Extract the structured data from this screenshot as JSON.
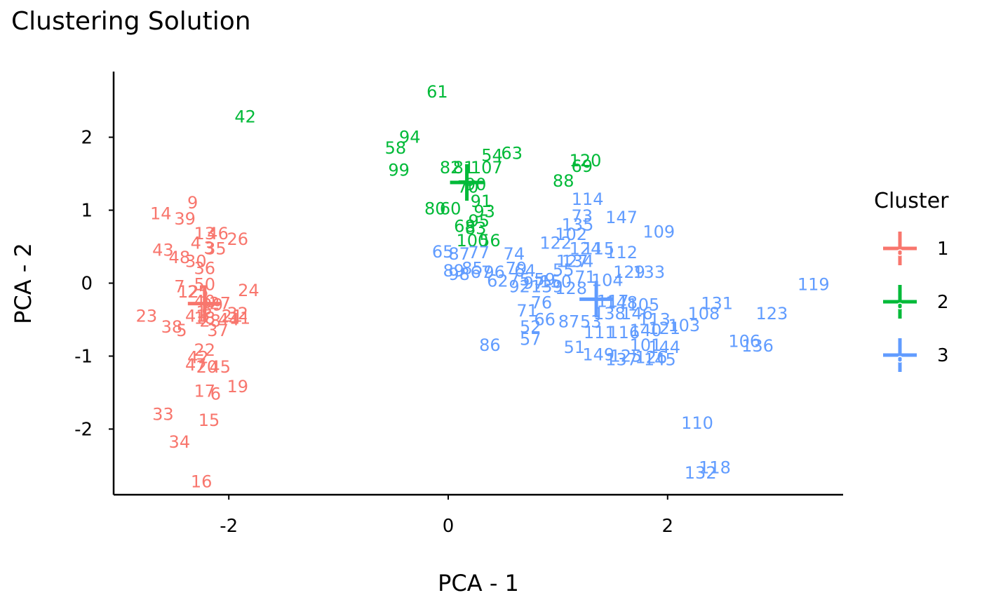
{
  "chart_data": {
    "type": "scatter",
    "title": "Clustering Solution",
    "xlabel": "PCA - 1",
    "ylabel": "PCA - 2",
    "xlim": [
      -3.05,
      3.6
    ],
    "ylim": [
      -2.9,
      2.9
    ],
    "x_ticks": [
      {
        "v": -2,
        "label": "-2"
      },
      {
        "v": 0,
        "label": "0"
      },
      {
        "v": 2,
        "label": "2"
      }
    ],
    "y_ticks": [
      {
        "v": -2,
        "label": "-2"
      },
      {
        "v": -1,
        "label": "-1"
      },
      {
        "v": 0,
        "label": "0"
      },
      {
        "v": 1,
        "label": "1"
      },
      {
        "v": 2,
        "label": "2"
      }
    ],
    "grid": false,
    "legend": {
      "title": "Cluster",
      "position": "right",
      "entries": [
        {
          "label": "1",
          "color": "#F8766D"
        },
        {
          "label": "2",
          "color": "#00BA38"
        },
        {
          "label": "3",
          "color": "#619CFF"
        }
      ]
    },
    "centroids": [
      {
        "cluster": "1",
        "x": -2.22,
        "y": -0.28
      },
      {
        "cluster": "2",
        "x": 0.17,
        "y": 1.38
      },
      {
        "cluster": "3",
        "x": 1.35,
        "y": -0.22
      }
    ],
    "series": [
      {
        "name": "1",
        "color": "#F8766D",
        "points": [
          {
            "label": "9",
            "x": -2.33,
            "y": 1.1
          },
          {
            "label": "14",
            "x": -2.62,
            "y": 0.95
          },
          {
            "label": "39",
            "x": -2.4,
            "y": 0.88
          },
          {
            "label": "13",
            "x": -2.22,
            "y": 0.68
          },
          {
            "label": "46",
            "x": -2.1,
            "y": 0.68
          },
          {
            "label": "26",
            "x": -1.92,
            "y": 0.6
          },
          {
            "label": "4",
            "x": -2.3,
            "y": 0.55
          },
          {
            "label": "35",
            "x": -2.12,
            "y": 0.47
          },
          {
            "label": "3",
            "x": -2.18,
            "y": 0.48
          },
          {
            "label": "43",
            "x": -2.6,
            "y": 0.45
          },
          {
            "label": "48",
            "x": -2.45,
            "y": 0.35
          },
          {
            "label": "30",
            "x": -2.3,
            "y": 0.3
          },
          {
            "label": "36",
            "x": -2.22,
            "y": 0.2
          },
          {
            "label": "7",
            "x": -2.45,
            "y": -0.05
          },
          {
            "label": "50",
            "x": -2.22,
            "y": -0.02
          },
          {
            "label": "12",
            "x": -2.37,
            "y": -0.12
          },
          {
            "label": "25",
            "x": -2.28,
            "y": -0.12
          },
          {
            "label": "24",
            "x": -1.82,
            "y": -0.1
          },
          {
            "label": "40",
            "x": -2.22,
            "y": -0.25
          },
          {
            "label": "29",
            "x": -2.15,
            "y": -0.3
          },
          {
            "label": "27",
            "x": -2.08,
            "y": -0.28
          },
          {
            "label": "8",
            "x": -2.2,
            "y": -0.35
          },
          {
            "label": "1",
            "x": -2.25,
            "y": -0.4
          },
          {
            "label": "23",
            "x": -2.75,
            "y": -0.45
          },
          {
            "label": "41",
            "x": -2.3,
            "y": -0.45
          },
          {
            "label": "18",
            "x": -2.22,
            "y": -0.48
          },
          {
            "label": "28",
            "x": -2.17,
            "y": -0.52
          },
          {
            "label": "21",
            "x": -1.97,
            "y": -0.45
          },
          {
            "label": "32",
            "x": -1.92,
            "y": -0.42
          },
          {
            "label": "44",
            "x": -2.0,
            "y": -0.5
          },
          {
            "label": "11",
            "x": -1.9,
            "y": -0.48
          },
          {
            "label": "38",
            "x": -2.52,
            "y": -0.6
          },
          {
            "label": "5",
            "x": -2.43,
            "y": -0.65
          },
          {
            "label": "37",
            "x": -2.1,
            "y": -0.65
          },
          {
            "label": "22",
            "x": -2.22,
            "y": -0.92
          },
          {
            "label": "42",
            "x": -2.28,
            "y": -1.02
          },
          {
            "label": "47",
            "x": -2.3,
            "y": -1.12
          },
          {
            "label": "20",
            "x": -2.2,
            "y": -1.15
          },
          {
            "label": "45",
            "x": -2.08,
            "y": -1.15
          },
          {
            "label": "17",
            "x": -2.22,
            "y": -1.48
          },
          {
            "label": "6",
            "x": -2.12,
            "y": -1.52
          },
          {
            "label": "19",
            "x": -1.92,
            "y": -1.42
          },
          {
            "label": "33",
            "x": -2.6,
            "y": -1.8
          },
          {
            "label": "15",
            "x": -2.18,
            "y": -1.88
          },
          {
            "label": "34",
            "x": -2.45,
            "y": -2.18
          },
          {
            "label": "16",
            "x": -2.25,
            "y": -2.72
          }
        ]
      },
      {
        "name": "2",
        "color": "#00BA38",
        "points": [
          {
            "label": "42",
            "x": -1.85,
            "y": 2.28
          },
          {
            "label": "61",
            "x": -0.1,
            "y": 2.62
          },
          {
            "label": "94",
            "x": -0.35,
            "y": 2.0
          },
          {
            "label": "58",
            "x": -0.48,
            "y": 1.85
          },
          {
            "label": "99",
            "x": -0.45,
            "y": 1.55
          },
          {
            "label": "54",
            "x": 0.4,
            "y": 1.75
          },
          {
            "label": "63",
            "x": 0.58,
            "y": 1.78
          },
          {
            "label": "82",
            "x": 0.02,
            "y": 1.58
          },
          {
            "label": "81",
            "x": 0.14,
            "y": 1.58
          },
          {
            "label": "107",
            "x": 0.35,
            "y": 1.58
          },
          {
            "label": "120",
            "x": 1.25,
            "y": 1.68
          },
          {
            "label": "69",
            "x": 1.22,
            "y": 1.6
          },
          {
            "label": "88",
            "x": 1.05,
            "y": 1.4
          },
          {
            "label": "70",
            "x": 0.18,
            "y": 1.32
          },
          {
            "label": "90",
            "x": 0.25,
            "y": 1.35
          },
          {
            "label": "91",
            "x": 0.3,
            "y": 1.12
          },
          {
            "label": "80",
            "x": -0.12,
            "y": 1.02
          },
          {
            "label": "60",
            "x": 0.02,
            "y": 1.02
          },
          {
            "label": "93",
            "x": 0.33,
            "y": 0.98
          },
          {
            "label": "95",
            "x": 0.28,
            "y": 0.85
          },
          {
            "label": "68",
            "x": 0.15,
            "y": 0.78
          },
          {
            "label": "83",
            "x": 0.25,
            "y": 0.75
          },
          {
            "label": "100",
            "x": 0.22,
            "y": 0.58
          },
          {
            "label": "56",
            "x": 0.38,
            "y": 0.58
          }
        ]
      },
      {
        "name": "3",
        "color": "#619CFF",
        "points": [
          {
            "label": "114",
            "x": 1.27,
            "y": 1.15
          },
          {
            "label": "73",
            "x": 1.22,
            "y": 0.92
          },
          {
            "label": "147",
            "x": 1.58,
            "y": 0.9
          },
          {
            "label": "135",
            "x": 1.18,
            "y": 0.8
          },
          {
            "label": "109",
            "x": 1.92,
            "y": 0.7
          },
          {
            "label": "102",
            "x": 1.12,
            "y": 0.67
          },
          {
            "label": "122",
            "x": 0.98,
            "y": 0.55
          },
          {
            "label": "124",
            "x": 1.25,
            "y": 0.47
          },
          {
            "label": "115",
            "x": 1.37,
            "y": 0.47
          },
          {
            "label": "112",
            "x": 1.58,
            "y": 0.42
          },
          {
            "label": "65",
            "x": -0.05,
            "y": 0.43
          },
          {
            "label": "87",
            "x": 0.1,
            "y": 0.4
          },
          {
            "label": "77",
            "x": 0.28,
            "y": 0.42
          },
          {
            "label": "74",
            "x": 0.6,
            "y": 0.4
          },
          {
            "label": "127",
            "x": 1.13,
            "y": 0.3
          },
          {
            "label": "134",
            "x": 1.18,
            "y": 0.3
          },
          {
            "label": "89",
            "x": 0.05,
            "y": 0.17
          },
          {
            "label": "85",
            "x": 0.22,
            "y": 0.2
          },
          {
            "label": "67",
            "x": 0.3,
            "y": 0.15
          },
          {
            "label": "96",
            "x": 0.42,
            "y": 0.15
          },
          {
            "label": "79",
            "x": 0.62,
            "y": 0.2
          },
          {
            "label": "64",
            "x": 0.7,
            "y": 0.17
          },
          {
            "label": "55",
            "x": 1.05,
            "y": 0.18
          },
          {
            "label": "129",
            "x": 1.65,
            "y": 0.15
          },
          {
            "label": "133",
            "x": 1.83,
            "y": 0.15
          },
          {
            "label": "98",
            "x": 0.1,
            "y": 0.12
          },
          {
            "label": "62",
            "x": 0.45,
            "y": 0.03
          },
          {
            "label": "75",
            "x": 0.65,
            "y": 0.05
          },
          {
            "label": "97",
            "x": 0.78,
            "y": 0.0
          },
          {
            "label": "59",
            "x": 0.88,
            "y": 0.05
          },
          {
            "label": "150",
            "x": 0.98,
            "y": 0.02
          },
          {
            "label": "104",
            "x": 1.45,
            "y": 0.04
          },
          {
            "label": "92",
            "x": 0.65,
            "y": -0.05
          },
          {
            "label": "139",
            "x": 0.9,
            "y": -0.05
          },
          {
            "label": "128",
            "x": 1.12,
            "y": -0.07
          },
          {
            "label": "71",
            "x": 1.25,
            "y": 0.08
          },
          {
            "label": "119",
            "x": 3.33,
            "y": -0.02
          },
          {
            "label": "76",
            "x": 0.85,
            "y": -0.27
          },
          {
            "label": "117",
            "x": 1.5,
            "y": -0.25
          },
          {
            "label": "148",
            "x": 1.58,
            "y": -0.27
          },
          {
            "label": "105",
            "x": 1.78,
            "y": -0.3
          },
          {
            "label": "131",
            "x": 2.45,
            "y": -0.28
          },
          {
            "label": "71",
            "x": 0.72,
            "y": -0.38
          },
          {
            "label": "138",
            "x": 1.47,
            "y": -0.42
          },
          {
            "label": "146",
            "x": 1.72,
            "y": -0.42
          },
          {
            "label": "108",
            "x": 2.33,
            "y": -0.42
          },
          {
            "label": "123",
            "x": 2.95,
            "y": -0.42
          },
          {
            "label": "66",
            "x": 0.88,
            "y": -0.5
          },
          {
            "label": "87",
            "x": 1.1,
            "y": -0.53
          },
          {
            "label": "53",
            "x": 1.3,
            "y": -0.53
          },
          {
            "label": "113",
            "x": 1.88,
            "y": -0.5
          },
          {
            "label": "103",
            "x": 2.15,
            "y": -0.58
          },
          {
            "label": "52",
            "x": 0.75,
            "y": -0.6
          },
          {
            "label": "111",
            "x": 1.38,
            "y": -0.68
          },
          {
            "label": "116",
            "x": 1.6,
            "y": -0.68
          },
          {
            "label": "140",
            "x": 1.8,
            "y": -0.65
          },
          {
            "label": "121",
            "x": 1.97,
            "y": -0.62
          },
          {
            "label": "57",
            "x": 0.75,
            "y": -0.77
          },
          {
            "label": "86",
            "x": 0.38,
            "y": -0.85
          },
          {
            "label": "51",
            "x": 1.15,
            "y": -0.88
          },
          {
            "label": "101",
            "x": 1.8,
            "y": -0.85
          },
          {
            "label": "144",
            "x": 1.97,
            "y": -0.88
          },
          {
            "label": "106",
            "x": 2.7,
            "y": -0.8
          },
          {
            "label": "136",
            "x": 2.82,
            "y": -0.86
          },
          {
            "label": "149",
            "x": 1.37,
            "y": -0.98
          },
          {
            "label": "125",
            "x": 1.62,
            "y": -1.0
          },
          {
            "label": "137",
            "x": 1.58,
            "y": -1.05
          },
          {
            "label": "126",
            "x": 1.85,
            "y": -1.02
          },
          {
            "label": "145",
            "x": 1.93,
            "y": -1.05
          },
          {
            "label": "110",
            "x": 2.27,
            "y": -1.92
          },
          {
            "label": "118",
            "x": 2.43,
            "y": -2.53
          },
          {
            "label": "132",
            "x": 2.3,
            "y": -2.6
          }
        ]
      }
    ]
  }
}
